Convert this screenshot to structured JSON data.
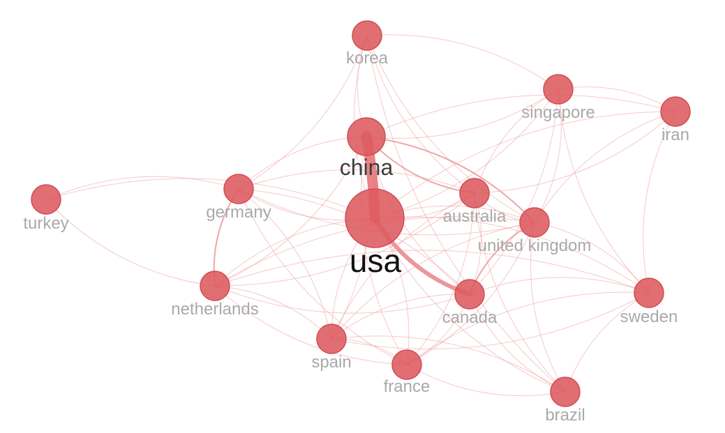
{
  "nodes": [
    {
      "id": "usa",
      "label": "usa",
      "emphasis": "primary"
    },
    {
      "id": "china",
      "label": "china",
      "emphasis": "secondary"
    },
    {
      "id": "korea",
      "label": "korea"
    },
    {
      "id": "singapore",
      "label": "singapore"
    },
    {
      "id": "iran",
      "label": "iran"
    },
    {
      "id": "turkey",
      "label": "turkey"
    },
    {
      "id": "germany",
      "label": "germany"
    },
    {
      "id": "australia",
      "label": "australia"
    },
    {
      "id": "united-kingdom",
      "label": "united kingdom"
    },
    {
      "id": "netherlands",
      "label": "netherlands"
    },
    {
      "id": "canada",
      "label": "canada"
    },
    {
      "id": "sweden",
      "label": "sweden"
    },
    {
      "id": "spain",
      "label": "spain"
    },
    {
      "id": "france",
      "label": "france"
    },
    {
      "id": "brazil",
      "label": "brazil"
    }
  ],
  "edges": [
    {
      "source": "usa",
      "target": "china",
      "strength": "strong"
    },
    {
      "source": "usa",
      "target": "canada",
      "strength": "medium"
    },
    {
      "source": "china",
      "target": "united-kingdom",
      "strength": "light"
    },
    {
      "source": "china",
      "target": "australia",
      "strength": "light"
    },
    {
      "source": "canada",
      "target": "united-kingdom",
      "strength": "light"
    },
    {
      "source": "germany",
      "target": "netherlands",
      "strength": "light"
    },
    {
      "source": "usa",
      "target": "korea"
    },
    {
      "source": "usa",
      "target": "singapore"
    },
    {
      "source": "usa",
      "target": "iran"
    },
    {
      "source": "usa",
      "target": "turkey"
    },
    {
      "source": "usa",
      "target": "germany"
    },
    {
      "source": "usa",
      "target": "australia"
    },
    {
      "source": "usa",
      "target": "united-kingdom"
    },
    {
      "source": "usa",
      "target": "netherlands"
    },
    {
      "source": "usa",
      "target": "sweden"
    },
    {
      "source": "usa",
      "target": "spain"
    },
    {
      "source": "usa",
      "target": "france"
    },
    {
      "source": "usa",
      "target": "brazil"
    },
    {
      "source": "china",
      "target": "korea"
    },
    {
      "source": "china",
      "target": "singapore"
    },
    {
      "source": "china",
      "target": "iran"
    },
    {
      "source": "china",
      "target": "germany"
    },
    {
      "source": "china",
      "target": "netherlands"
    },
    {
      "source": "china",
      "target": "canada"
    },
    {
      "source": "china",
      "target": "spain"
    },
    {
      "source": "china",
      "target": "france"
    },
    {
      "source": "korea",
      "target": "singapore"
    },
    {
      "source": "korea",
      "target": "australia"
    },
    {
      "source": "korea",
      "target": "germany"
    },
    {
      "source": "korea",
      "target": "united-kingdom"
    },
    {
      "source": "singapore",
      "target": "iran"
    },
    {
      "source": "singapore",
      "target": "australia"
    },
    {
      "source": "singapore",
      "target": "united-kingdom"
    },
    {
      "source": "singapore",
      "target": "sweden"
    },
    {
      "source": "singapore",
      "target": "canada"
    },
    {
      "source": "iran",
      "target": "united-kingdom"
    },
    {
      "source": "iran",
      "target": "australia"
    },
    {
      "source": "iran",
      "target": "sweden"
    },
    {
      "source": "turkey",
      "target": "germany"
    },
    {
      "source": "turkey",
      "target": "netherlands"
    },
    {
      "source": "germany",
      "target": "australia"
    },
    {
      "source": "germany",
      "target": "united-kingdom"
    },
    {
      "source": "germany",
      "target": "spain"
    },
    {
      "source": "germany",
      "target": "france"
    },
    {
      "source": "germany",
      "target": "canada"
    },
    {
      "source": "netherlands",
      "target": "australia"
    },
    {
      "source": "netherlands",
      "target": "united-kingdom"
    },
    {
      "source": "netherlands",
      "target": "canada"
    },
    {
      "source": "netherlands",
      "target": "spain"
    },
    {
      "source": "netherlands",
      "target": "france"
    },
    {
      "source": "netherlands",
      "target": "sweden"
    },
    {
      "source": "australia",
      "target": "united-kingdom"
    },
    {
      "source": "australia",
      "target": "canada"
    },
    {
      "source": "australia",
      "target": "spain"
    },
    {
      "source": "australia",
      "target": "france"
    },
    {
      "source": "australia",
      "target": "brazil"
    },
    {
      "source": "united-kingdom",
      "target": "sweden"
    },
    {
      "source": "united-kingdom",
      "target": "spain"
    },
    {
      "source": "united-kingdom",
      "target": "france"
    },
    {
      "source": "united-kingdom",
      "target": "brazil"
    },
    {
      "source": "canada",
      "target": "sweden"
    },
    {
      "source": "canada",
      "target": "spain"
    },
    {
      "source": "canada",
      "target": "france"
    },
    {
      "source": "canada",
      "target": "brazil"
    },
    {
      "source": "spain",
      "target": "france"
    },
    {
      "source": "spain",
      "target": "sweden"
    },
    {
      "source": "spain",
      "target": "brazil"
    },
    {
      "source": "france",
      "target": "brazil"
    },
    {
      "source": "france",
      "target": "sweden"
    },
    {
      "source": "sweden",
      "target": "brazil"
    },
    {
      "source": "brazil",
      "target": "korea"
    }
  ],
  "colors": {
    "node_fill": "#dd5a5e",
    "node_stroke": "#cf4c52",
    "edge": "#ee9a9d",
    "edge_strong": "#e46a6f",
    "label_primary": "#111111",
    "label_secondary": "#3d3d3d",
    "label_muted": "#a9a9a9"
  }
}
